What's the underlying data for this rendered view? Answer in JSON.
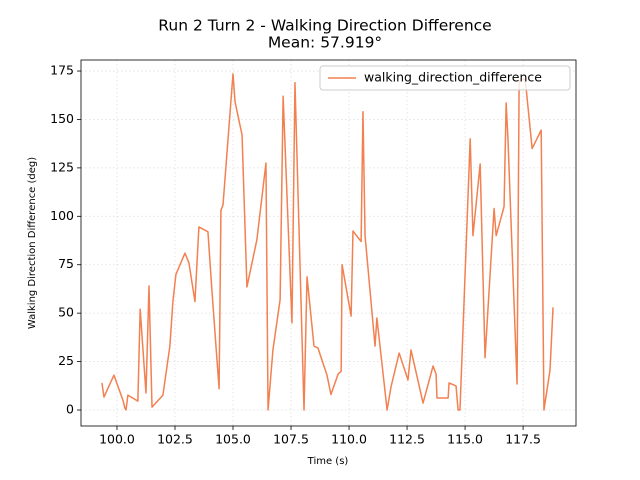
{
  "chart_data": {
    "type": "line",
    "title": "Run 2 Turn 2 - Walking Direction Difference",
    "subtitle": "Mean: 57.919°",
    "x_label": "Time (s)",
    "y_label": "Walking Direction Difference (deg)",
    "x": [
      99.35,
      99.44,
      99.87,
      100.26,
      100.34,
      100.39,
      100.47,
      100.9,
      101.0,
      101.25,
      101.38,
      101.51,
      101.98,
      102.28,
      102.41,
      102.54,
      102.93,
      103.1,
      103.36,
      103.53,
      103.92,
      104.09,
      104.4,
      104.48,
      104.57,
      105.0,
      105.09,
      105.39,
      105.6,
      106.03,
      106.42,
      106.51,
      106.72,
      107.03,
      107.16,
      107.54,
      107.67,
      108.06,
      108.19,
      108.49,
      108.66,
      109.05,
      109.22,
      109.53,
      109.66,
      109.7,
      110.09,
      110.17,
      110.52,
      110.6,
      110.69,
      111.12,
      111.2,
      111.64,
      111.81,
      112.16,
      112.54,
      112.67,
      113.19,
      113.62,
      113.75,
      113.79,
      114.27,
      114.31,
      114.61,
      114.7,
      114.78,
      115.22,
      115.34,
      115.65,
      115.86,
      116.25,
      116.34,
      116.68,
      116.77,
      116.85,
      117.24,
      117.33,
      117.59,
      117.89,
      118.28,
      118.4,
      118.66,
      118.79
    ],
    "series": [
      {
        "name": "walking_direction_difference",
        "color": "#f28050",
        "values": [
          14,
          6.7,
          18,
          5,
          1,
          0,
          7.7,
          4.6,
          52,
          8.8,
          64,
          1.5,
          7.7,
          33,
          56,
          70,
          81,
          76,
          56,
          94.5,
          92,
          62,
          11,
          103,
          106,
          173.5,
          159,
          142,
          63.5,
          88,
          127.5,
          0,
          31,
          57,
          162,
          45,
          169,
          0,
          68.7,
          33,
          32,
          18,
          8,
          18.6,
          20,
          75,
          48.5,
          92.4,
          87,
          154,
          90,
          33,
          47.5,
          0,
          12,
          29.4,
          15.5,
          31,
          3.6,
          22.7,
          18.6,
          6.2,
          6.2,
          14,
          12.4,
          0,
          0,
          140,
          90,
          127,
          27,
          104,
          90,
          105,
          158.5,
          139.5,
          13.4,
          170,
          171,
          135,
          144.5,
          0,
          20.6,
          53
        ]
      }
    ],
    "xlim": [
      98.45,
      119.78
    ],
    "ylim": [
      -8.26,
      180.7
    ],
    "xticks": [
      {
        "value": 100,
        "label": "100.0"
      },
      {
        "value": 102.5,
        "label": "102.5"
      },
      {
        "value": 105,
        "label": "105.0"
      },
      {
        "value": 107.5,
        "label": "107.5"
      },
      {
        "value": 110,
        "label": "110.0"
      },
      {
        "value": 112.5,
        "label": "112.5"
      },
      {
        "value": 115,
        "label": "115.0"
      },
      {
        "value": 117.5,
        "label": "117.5"
      }
    ],
    "yticks": [
      0,
      25,
      50,
      75,
      100,
      125,
      150,
      175
    ],
    "grid": true,
    "legend": "upper right"
  }
}
